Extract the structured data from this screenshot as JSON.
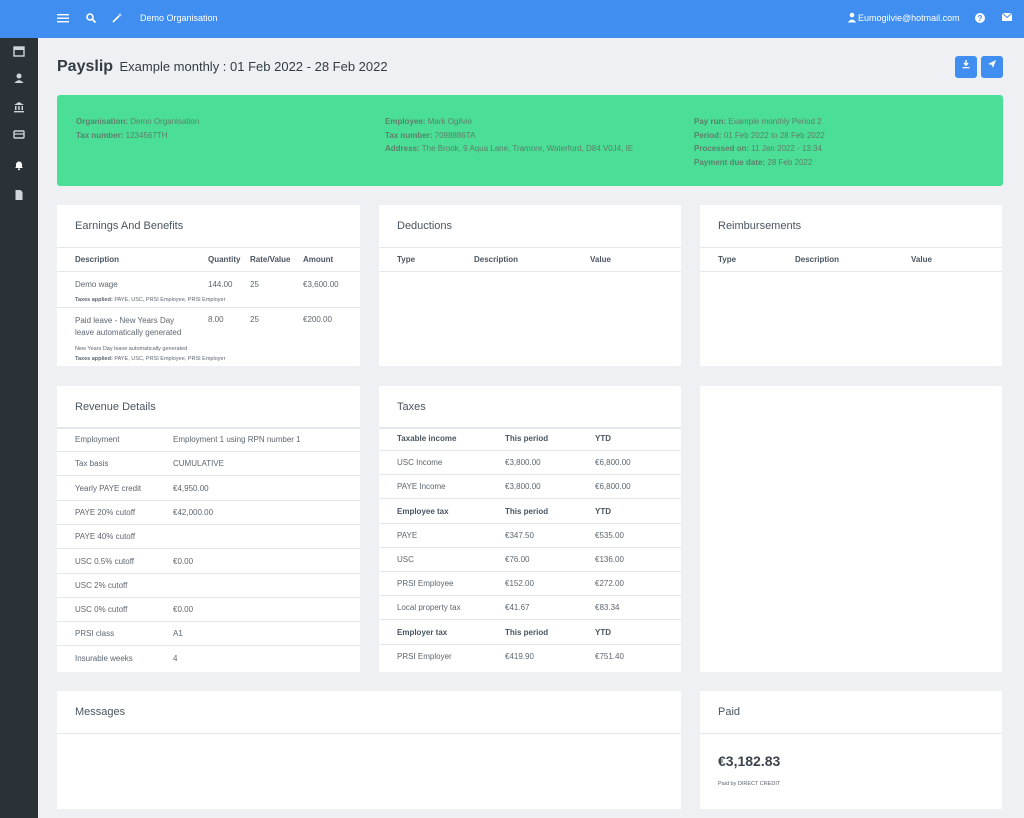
{
  "topbar": {
    "org_name": "Demo Organisation",
    "user_email": "Eumogilvie@hotmail.com",
    "icons": [
      "menu-icon",
      "search-icon",
      "wand-icon",
      "user-icon",
      "help-icon",
      "mail-icon"
    ]
  },
  "sidebar": {
    "items": [
      {
        "icon": "calendar-icon"
      },
      {
        "icon": "user-icon"
      },
      {
        "icon": "bank-icon"
      },
      {
        "icon": "payroll-icon"
      },
      {
        "icon": "bell-icon"
      },
      {
        "icon": "document-icon"
      }
    ]
  },
  "header": {
    "title": "Payslip",
    "subtitle": "Example monthly : 01 Feb 2022 - 28 Feb 2022",
    "actions": [
      {
        "icon": "download-icon"
      },
      {
        "icon": "send-icon"
      }
    ]
  },
  "banner": {
    "color": "#4bde96",
    "organisation_label": "Organisation:",
    "organisation": "Demo Organisation",
    "tax_number_label": "Tax number:",
    "tax_number": "1234567TH",
    "employee_label": "Employee:",
    "employee": "Mark Ogilvie",
    "emp_tax_number_label": "Tax number:",
    "emp_tax_number": "7098886TA",
    "address_label": "Address:",
    "address": "The Brook, 9 Aqua Lane, Tramore, Waterford, D84 V0J4, IE",
    "pay_run_label": "Pay run:",
    "pay_run": "Example monthly Period 2",
    "period_label": "Period:",
    "period": "01 Feb 2022 to 28 Feb 2022",
    "processed_label": "Processed on:",
    "processed": "11 Jan 2022 - 13:34",
    "due_label": "Payment due date:",
    "due": "28 Feb 2022"
  },
  "earnings": {
    "title": "Earnings And Benefits",
    "headers": [
      "Description",
      "Quantity",
      "Rate/Value",
      "Amount"
    ],
    "rows": [
      {
        "description": "Demo wage",
        "quantity": "144.00",
        "rate": "25",
        "amount": "€3,600.00",
        "taxes_label": "Taxes applied:",
        "taxes": "PAYE, USC, PRSI Employee, PRSI Employer"
      },
      {
        "description_1": "Paid leave - New Years Day",
        "description_2": "leave automatically generated",
        "quantity": "8.00",
        "rate": "25",
        "amount": "€200.00",
        "note": "New Years Day leave automatically generated",
        "taxes_label": "Taxes applied:",
        "taxes": "PAYE, USC, PRSI Employee, PRSI Employer"
      }
    ]
  },
  "deductions": {
    "title": "Deductions",
    "headers": [
      "Type",
      "Description",
      "Value"
    ]
  },
  "reimbursements": {
    "title": "Reimbursements",
    "headers": [
      "Type",
      "Description",
      "Value"
    ]
  },
  "revenue": {
    "title": "Revenue Details",
    "rows": [
      {
        "label": "Employment",
        "value": "Employment 1 using RPN number 1"
      },
      {
        "label": "Tax basis",
        "value": "CUMULATIVE"
      },
      {
        "label": "Yearly PAYE credit",
        "value": "€4,950.00"
      },
      {
        "label": "PAYE 20% cutoff",
        "value": "€42,000.00"
      },
      {
        "label": "PAYE 40% cutoff",
        "value": ""
      },
      {
        "label": "USC 0.5% cutoff",
        "value": "€0.00"
      },
      {
        "label": "USC 2% cutoff",
        "value": ""
      },
      {
        "label": "USC 0% cutoff",
        "value": "€0.00"
      },
      {
        "label": "PRSI class",
        "value": "A1"
      },
      {
        "label": "Insurable weeks",
        "value": "4"
      }
    ]
  },
  "taxes": {
    "title": "Taxes",
    "rows": [
      {
        "a": "Taxable income",
        "b": "This period",
        "c": "YTD",
        "header": true
      },
      {
        "a": "USC Income",
        "b": "€3,800.00",
        "c": "€6,800.00"
      },
      {
        "a": "PAYE Income",
        "b": "€3,800.00",
        "c": "€6,800.00"
      },
      {
        "a": "Employee tax",
        "b": "This period",
        "c": "YTD",
        "header": true
      },
      {
        "a": "PAYE",
        "b": "€347.50",
        "c": "€535.00"
      },
      {
        "a": "USC",
        "b": "€76.00",
        "c": "€136.00"
      },
      {
        "a": "PRSI Employee",
        "b": "€152.00",
        "c": "€272.00"
      },
      {
        "a": "Local property tax",
        "b": "€41.67",
        "c": "€83.34"
      },
      {
        "a": "Employer tax",
        "b": "This period",
        "c": "YTD",
        "header": true
      },
      {
        "a": "PRSI Employer",
        "b": "€419.90",
        "c": "€751.40"
      }
    ]
  },
  "messages": {
    "title": "Messages"
  },
  "paid": {
    "title": "Paid",
    "amount": "€3,182.83",
    "by": "Paid by DIRECT CREDIT"
  }
}
